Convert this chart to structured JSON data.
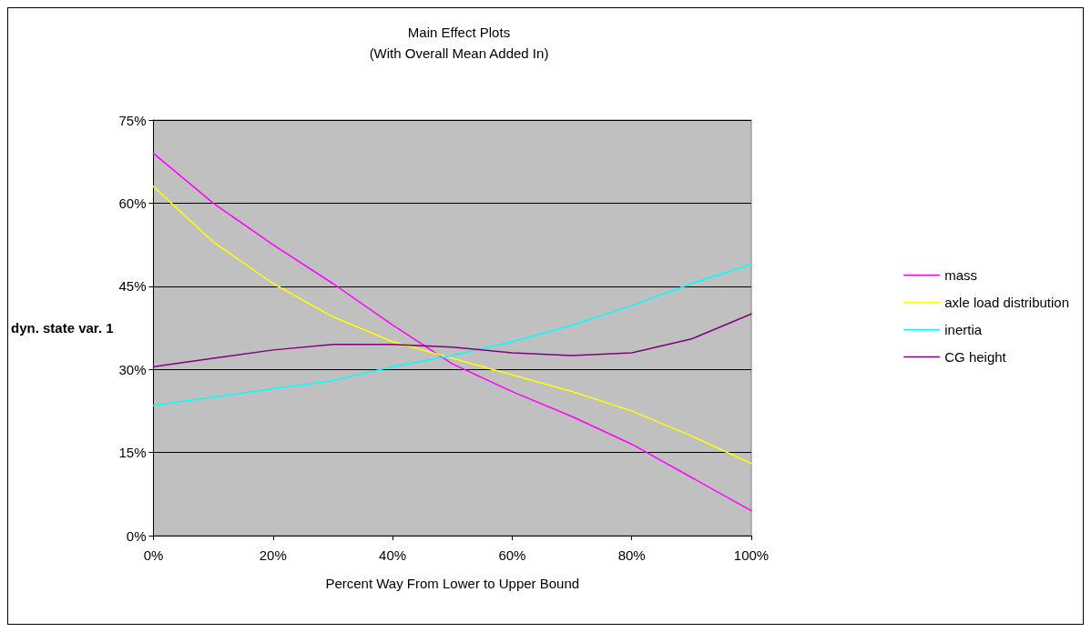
{
  "chart_data": {
    "type": "line",
    "title": "Main Effect Plots",
    "subtitle": "(With Overall Mean Added In)",
    "xlabel": "Percent Way From Lower to Upper Bound",
    "ylabel": "dyn. state var. 1",
    "x": [
      0,
      10,
      20,
      30,
      40,
      50,
      60,
      70,
      80,
      90,
      100
    ],
    "series": [
      {
        "name": "mass",
        "color": "#ff00ff",
        "values": [
          69,
          60,
          52.5,
          45.5,
          38,
          31,
          26,
          21.5,
          16.5,
          10.5,
          4.5
        ]
      },
      {
        "name": "axle load distribution",
        "color": "#ffff00",
        "values": [
          63,
          53,
          45.5,
          39.5,
          35,
          32,
          29,
          26,
          22.5,
          18,
          13
        ]
      },
      {
        "name": "inertia",
        "color": "#00ffff",
        "values": [
          23.5,
          25,
          26.5,
          28,
          30.5,
          32.5,
          35,
          38,
          41.5,
          45.5,
          49
        ]
      },
      {
        "name": "CG height",
        "color": "#800080",
        "values": [
          30.5,
          32,
          33.5,
          34.5,
          34.5,
          34,
          33,
          32.5,
          33,
          35.5,
          40
        ]
      }
    ],
    "xlim": [
      0,
      100
    ],
    "xticks": [
      {
        "value": 0,
        "label": "0%"
      },
      {
        "value": 20,
        "label": "20%"
      },
      {
        "value": 40,
        "label": "40%"
      },
      {
        "value": 60,
        "label": "60%"
      },
      {
        "value": 80,
        "label": "80%"
      },
      {
        "value": 100,
        "label": "100%"
      }
    ],
    "ylim": [
      0,
      75
    ],
    "yticks": [
      {
        "value": 0,
        "label": "0%"
      },
      {
        "value": 15,
        "label": "15%"
      },
      {
        "value": 30,
        "label": "30%"
      },
      {
        "value": 45,
        "label": "45%"
      },
      {
        "value": 60,
        "label": "60%"
      },
      {
        "value": 75,
        "label": "75%"
      }
    ],
    "grid": "y",
    "legend": "right",
    "marker": "none",
    "line_style": "solid"
  }
}
